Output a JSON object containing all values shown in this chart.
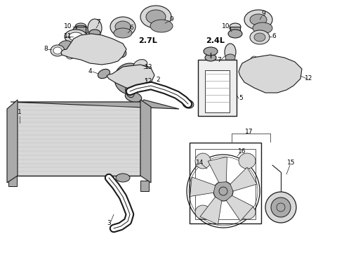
{
  "bg_color": "#ffffff",
  "line_color": "#1a1a1a",
  "gray_fill": "#d8d8d8",
  "gray_dark": "#aaaaaa",
  "gray_light": "#eeeeee"
}
